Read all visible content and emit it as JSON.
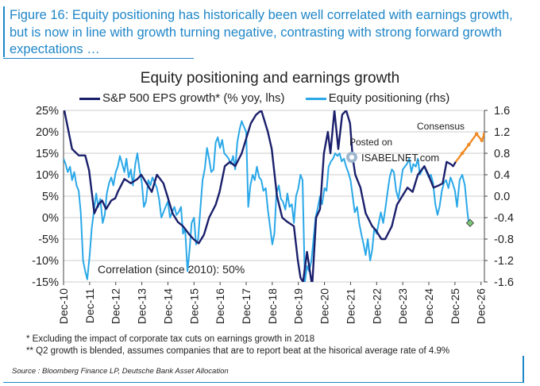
{
  "figure_title": "Figure 16: Equity positioning has historically been well correlated with earnings growth, but is now in line with growth turning negative, contrasting with strong forward growth expectations …",
  "colors": {
    "accent": "#1f86c8",
    "eps_line": "#1a1f6b",
    "positioning_line": "#2aa8e8",
    "consensus": "#f08a24",
    "latest_point": "#7cc576",
    "gridline": "#bbbbbb"
  },
  "chart_data": {
    "type": "line",
    "title": "Equity positioning and earnings growth",
    "correlation_label": "Correlation (since 2010): 50%",
    "consensus_label": "Consensus",
    "watermark": {
      "line1": "Posted on",
      "line2": "ISABELNET.com"
    },
    "x_ticks": [
      "Dec-10",
      "Dec-11",
      "Dec-12",
      "Dec-13",
      "Dec-14",
      "Dec-15",
      "Dec-16",
      "Dec-17",
      "Dec-18",
      "Dec-19",
      "Dec-20",
      "Dec-21",
      "Dec-22",
      "Dec-23",
      "Dec-24",
      "Dec-25",
      "Dec-26"
    ],
    "x_range": [
      2010.92,
      2027.05
    ],
    "y_left": {
      "label": "% yoy",
      "range": [
        -15,
        25
      ],
      "ticks": [
        25,
        20,
        15,
        10,
        5,
        0,
        -5,
        -10,
        -15
      ],
      "tick_labels": [
        "25%",
        "20%",
        "15%",
        "10%",
        "5%",
        "0%",
        "-5%",
        "-10%",
        "-15%"
      ]
    },
    "y_right": {
      "label": "rhs",
      "range": [
        -1.6,
        1.6
      ],
      "ticks": [
        1.6,
        1.2,
        0.8,
        0.4,
        0.0,
        -0.4,
        -0.8,
        -1.2,
        -1.6
      ],
      "tick_labels": [
        "1.6",
        "1.2",
        "0.8",
        "0.4",
        "0.0",
        "-0.4",
        "-0.8",
        "-1.2",
        "-1.6"
      ]
    },
    "series": [
      {
        "name": "S&P 500 EPS growth* (% yoy, lhs)",
        "axis": "left",
        "points": [
          [
            2010.95,
            25
          ],
          [
            2011.25,
            16
          ],
          [
            2011.5,
            14.5
          ],
          [
            2011.75,
            14.5
          ],
          [
            2011.9,
            11
          ],
          [
            2012.0,
            6
          ],
          [
            2012.1,
            1
          ],
          [
            2012.25,
            3
          ],
          [
            2012.4,
            4
          ],
          [
            2012.55,
            2
          ],
          [
            2012.75,
            4
          ],
          [
            2012.9,
            4.5
          ],
          [
            2013.0,
            6
          ],
          [
            2013.25,
            9
          ],
          [
            2013.5,
            8
          ],
          [
            2013.75,
            9
          ],
          [
            2013.9,
            10
          ],
          [
            2014.1,
            8
          ],
          [
            2014.3,
            6
          ],
          [
            2014.5,
            10
          ],
          [
            2014.75,
            8
          ],
          [
            2014.9,
            5
          ],
          [
            2015.1,
            1
          ],
          [
            2015.3,
            -1
          ],
          [
            2015.5,
            -2
          ],
          [
            2015.75,
            -4
          ],
          [
            2015.9,
            -5
          ],
          [
            2016.1,
            -6
          ],
          [
            2016.3,
            -4
          ],
          [
            2016.5,
            0
          ],
          [
            2016.75,
            3
          ],
          [
            2016.9,
            6
          ],
          [
            2017.1,
            12
          ],
          [
            2017.3,
            13
          ],
          [
            2017.5,
            12
          ],
          [
            2017.75,
            15
          ],
          [
            2017.9,
            18
          ],
          [
            2018.1,
            22
          ],
          [
            2018.3,
            24
          ],
          [
            2018.5,
            25
          ],
          [
            2018.75,
            20
          ],
          [
            2018.9,
            16
          ],
          [
            2019.1,
            5
          ],
          [
            2019.3,
            0
          ],
          [
            2019.5,
            -1
          ],
          [
            2019.75,
            -2
          ],
          [
            2019.9,
            -10
          ],
          [
            2020.0,
            -14
          ],
          [
            2020.1,
            -15
          ],
          [
            2020.25,
            -8
          ],
          [
            2020.45,
            -16
          ],
          [
            2020.6,
            0
          ],
          [
            2020.75,
            2
          ],
          [
            2020.9,
            15
          ],
          [
            2021.05,
            20
          ],
          [
            2021.15,
            15
          ],
          [
            2021.3,
            25
          ],
          [
            2021.45,
            16
          ],
          [
            2021.6,
            24
          ],
          [
            2021.75,
            25
          ],
          [
            2021.9,
            22
          ],
          [
            2022.0,
            14
          ],
          [
            2022.1,
            10
          ],
          [
            2022.3,
            7
          ],
          [
            2022.5,
            1
          ],
          [
            2022.75,
            -2
          ],
          [
            2022.9,
            -3
          ],
          [
            2023.1,
            -5
          ],
          [
            2023.25,
            -5
          ],
          [
            2023.5,
            -2
          ],
          [
            2023.7,
            3
          ],
          [
            2023.9,
            5
          ],
          [
            2024.1,
            7
          ],
          [
            2024.3,
            6
          ],
          [
            2024.5,
            10
          ],
          [
            2024.75,
            12
          ],
          [
            2024.9,
            10
          ],
          [
            2025.1,
            7
          ],
          [
            2025.3,
            7.5
          ],
          [
            2025.45,
            8
          ],
          [
            2025.6,
            13
          ],
          [
            2025.75,
            12.5
          ],
          [
            2025.85,
            12
          ],
          [
            2025.95,
            13
          ]
        ]
      },
      {
        "name": "Equity positioning (rhs)",
        "axis": "right",
        "points": [
          [
            2010.92,
            0.7
          ],
          [
            2011.0,
            0.6
          ],
          [
            2011.08,
            0.45
          ],
          [
            2011.17,
            0.55
          ],
          [
            2011.25,
            0.3
          ],
          [
            2011.33,
            0.45
          ],
          [
            2011.42,
            0.2
          ],
          [
            2011.5,
            0.1
          ],
          [
            2011.58,
            -0.3
          ],
          [
            2011.67,
            -1.2
          ],
          [
            2011.75,
            -1.4
          ],
          [
            2011.83,
            -1.55
          ],
          [
            2011.92,
            -1.1
          ],
          [
            2012.0,
            -0.6
          ],
          [
            2012.08,
            -0.3
          ],
          [
            2012.17,
            0.05
          ],
          [
            2012.25,
            -0.2
          ],
          [
            2012.33,
            -0.05
          ],
          [
            2012.42,
            -0.5
          ],
          [
            2012.5,
            -0.35
          ],
          [
            2012.58,
            0.05
          ],
          [
            2012.67,
            0.25
          ],
          [
            2012.75,
            0.35
          ],
          [
            2012.83,
            0.2
          ],
          [
            2012.92,
            0.45
          ],
          [
            2013.0,
            0.55
          ],
          [
            2013.08,
            0.75
          ],
          [
            2013.17,
            0.6
          ],
          [
            2013.25,
            0.45
          ],
          [
            2013.33,
            0.7
          ],
          [
            2013.42,
            0.35
          ],
          [
            2013.5,
            0.5
          ],
          [
            2013.58,
            0.2
          ],
          [
            2013.67,
            0.6
          ],
          [
            2013.75,
            0.8
          ],
          [
            2013.83,
            0.5
          ],
          [
            2013.92,
            0.25
          ],
          [
            2014.0,
            -0.2
          ],
          [
            2014.08,
            -0.1
          ],
          [
            2014.17,
            0.3
          ],
          [
            2014.25,
            0.2
          ],
          [
            2014.33,
            0.35
          ],
          [
            2014.42,
            0.25
          ],
          [
            2014.5,
            0.15
          ],
          [
            2014.58,
            -0.05
          ],
          [
            2014.67,
            -0.4
          ],
          [
            2014.75,
            -0.3
          ],
          [
            2014.83,
            -0.2
          ],
          [
            2014.92,
            -0.1
          ],
          [
            2015.0,
            -0.4
          ],
          [
            2015.08,
            -0.3
          ],
          [
            2015.17,
            -0.2
          ],
          [
            2015.25,
            -0.35
          ],
          [
            2015.33,
            -0.3
          ],
          [
            2015.42,
            -0.2
          ],
          [
            2015.5,
            -0.7
          ],
          [
            2015.58,
            -0.6
          ],
          [
            2015.67,
            -1.4
          ],
          [
            2015.75,
            -1.0
          ],
          [
            2015.83,
            -0.5
          ],
          [
            2015.92,
            -0.4
          ],
          [
            2016.0,
            -0.9
          ],
          [
            2016.08,
            -0.8
          ],
          [
            2016.17,
            -0.2
          ],
          [
            2016.25,
            0.3
          ],
          [
            2016.33,
            0.5
          ],
          [
            2016.42,
            0.9
          ],
          [
            2016.5,
            0.7
          ],
          [
            2016.58,
            0.45
          ],
          [
            2016.67,
            0.5
          ],
          [
            2016.75,
            1.0
          ],
          [
            2016.83,
            1.1
          ],
          [
            2016.92,
            0.9
          ],
          [
            2017.0,
            1.05
          ],
          [
            2017.08,
            0.8
          ],
          [
            2017.17,
            0.75
          ],
          [
            2017.25,
            0.7
          ],
          [
            2017.33,
            0.6
          ],
          [
            2017.42,
            0.75
          ],
          [
            2017.5,
            0.5
          ],
          [
            2017.58,
            1.0
          ],
          [
            2017.67,
            1.25
          ],
          [
            2017.75,
            1.4
          ],
          [
            2017.83,
            1.3
          ],
          [
            2017.92,
            1.2
          ],
          [
            2018.0,
            -0.2
          ],
          [
            2018.08,
            0.2
          ],
          [
            2018.17,
            0.4
          ],
          [
            2018.25,
            0.3
          ],
          [
            2018.33,
            0.55
          ],
          [
            2018.42,
            0.35
          ],
          [
            2018.5,
            0.3
          ],
          [
            2018.58,
            0.1
          ],
          [
            2018.67,
            0.15
          ],
          [
            2018.75,
            -0.25
          ],
          [
            2018.83,
            -0.55
          ],
          [
            2018.92,
            -0.9
          ],
          [
            2019.0,
            -0.7
          ],
          [
            2019.08,
            0.05
          ],
          [
            2019.17,
            0.2
          ],
          [
            2019.25,
            -0.05
          ],
          [
            2019.33,
            -0.1
          ],
          [
            2019.42,
            -0.25
          ],
          [
            2019.5,
            0.05
          ],
          [
            2019.58,
            -0.2
          ],
          [
            2019.67,
            -0.15
          ],
          [
            2019.75,
            -0.5
          ],
          [
            2019.83,
            0.0
          ],
          [
            2019.92,
            0.15
          ],
          [
            2020.0,
            0.4
          ],
          [
            2020.08,
            0.3
          ],
          [
            2020.17,
            -1.6
          ],
          [
            2020.25,
            -1.3
          ],
          [
            2020.33,
            -1.4
          ],
          [
            2020.42,
            -1.2
          ],
          [
            2020.5,
            -0.8
          ],
          [
            2020.58,
            -0.4
          ],
          [
            2020.67,
            -0.2
          ],
          [
            2020.75,
            0.0
          ],
          [
            2020.83,
            -0.15
          ],
          [
            2020.92,
            0.15
          ],
          [
            2021.0,
            0.1
          ],
          [
            2021.08,
            0.55
          ],
          [
            2021.17,
            0.65
          ],
          [
            2021.25,
            0.7
          ],
          [
            2021.33,
            0.8
          ],
          [
            2021.42,
            0.75
          ],
          [
            2021.5,
            0.8
          ],
          [
            2021.58,
            0.65
          ],
          [
            2021.67,
            0.7
          ],
          [
            2021.75,
            0.55
          ],
          [
            2021.83,
            0.45
          ],
          [
            2021.92,
            0.3
          ],
          [
            2022.0,
            0.0
          ],
          [
            2022.08,
            -0.3
          ],
          [
            2022.17,
            -0.2
          ],
          [
            2022.25,
            -0.5
          ],
          [
            2022.33,
            -0.7
          ],
          [
            2022.42,
            -0.9
          ],
          [
            2022.5,
            -1.1
          ],
          [
            2022.58,
            -0.8
          ],
          [
            2022.67,
            -1.2
          ],
          [
            2022.75,
            -1.0
          ],
          [
            2022.83,
            -0.6
          ],
          [
            2022.92,
            -0.7
          ],
          [
            2023.0,
            -0.5
          ],
          [
            2023.08,
            -0.3
          ],
          [
            2023.17,
            -0.5
          ],
          [
            2023.25,
            -0.25
          ],
          [
            2023.33,
            0.05
          ],
          [
            2023.42,
            0.35
          ],
          [
            2023.5,
            0.5
          ],
          [
            2023.58,
            0.45
          ],
          [
            2023.67,
            0.1
          ],
          [
            2023.75,
            -0.05
          ],
          [
            2023.83,
            0.2
          ],
          [
            2023.92,
            0.5
          ],
          [
            2024.0,
            0.55
          ],
          [
            2024.08,
            0.6
          ],
          [
            2024.17,
            0.7
          ],
          [
            2024.25,
            0.45
          ],
          [
            2024.33,
            0.6
          ],
          [
            2024.42,
            0.55
          ],
          [
            2024.5,
            0.7
          ],
          [
            2024.58,
            0.4
          ],
          [
            2024.67,
            0.5
          ],
          [
            2024.75,
            0.55
          ],
          [
            2024.83,
            0.45
          ],
          [
            2024.92,
            0.35
          ],
          [
            2025.0,
            0.4
          ],
          [
            2025.08,
            0.25
          ],
          [
            2025.17,
            -0.15
          ],
          [
            2025.25,
            -0.35
          ],
          [
            2025.33,
            -0.2
          ],
          [
            2025.42,
            0.1
          ],
          [
            2025.5,
            0.25
          ],
          [
            2025.58,
            0.3
          ],
          [
            2025.67,
            0.15
          ],
          [
            2025.75,
            0.35
          ],
          [
            2025.83,
            0.25
          ],
          [
            2025.92,
            0.1
          ],
          [
            2026.0,
            -0.2
          ],
          [
            2026.1,
            0.3
          ],
          [
            2026.2,
            0.4
          ],
          [
            2026.3,
            0.2
          ],
          [
            2026.4,
            -0.3
          ],
          [
            2026.45,
            -0.5
          ],
          [
            2026.5,
            -0.45
          ]
        ]
      },
      {
        "name": "Consensus",
        "axis": "left",
        "points": [
          [
            2025.95,
            13
          ],
          [
            2026.2,
            15
          ],
          [
            2026.45,
            17
          ],
          [
            2026.75,
            19.5
          ],
          [
            2026.95,
            18
          ],
          [
            2027.05,
            19.5
          ]
        ]
      }
    ],
    "latest_marker": {
      "axis": "right",
      "x": 2026.5,
      "y": -0.5
    }
  },
  "footnotes": [
    "* Excluding the impact of corporate tax cuts on earnings growth in 2018",
    "** Q2 growth is blended, assumes companies that are to report beat at the hisorical average rate of 4.9%"
  ],
  "source": "Source : Bloomberg Finance LP, Deutsche Bank Asset Allocation"
}
